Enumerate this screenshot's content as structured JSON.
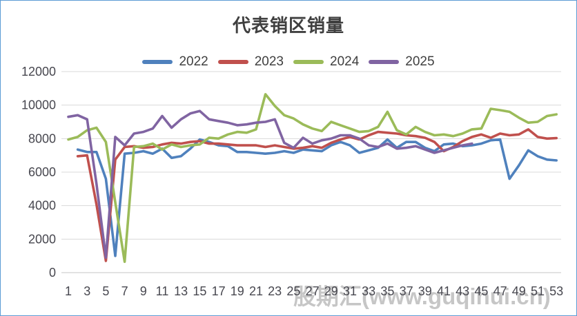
{
  "chart_data": {
    "type": "line",
    "title": "代表销区销量",
    "legend_position": "top",
    "grid": "horizontal",
    "axis": {
      "ylim": [
        0,
        12000
      ],
      "y_ticks": [
        0,
        2000,
        4000,
        6000,
        8000,
        10000,
        12000
      ],
      "x_ticks": [
        1,
        3,
        5,
        7,
        9,
        11,
        13,
        15,
        17,
        19,
        21,
        23,
        25,
        27,
        29,
        31,
        33,
        35,
        37,
        39,
        41,
        43,
        45,
        47,
        49,
        51,
        53
      ],
      "x_range": [
        1,
        53
      ]
    },
    "series": [
      {
        "name": "2022",
        "color": "#4F81BD",
        "start_week": 2,
        "values": [
          7350,
          7200,
          7200,
          5600,
          1000,
          7100,
          7150,
          7250,
          7100,
          7400,
          6850,
          6950,
          7400,
          7950,
          7800,
          7600,
          7550,
          7200,
          7200,
          7150,
          7100,
          7150,
          7250,
          7150,
          7350,
          7300,
          7250,
          7600,
          7800,
          7600,
          7150,
          7300,
          7450,
          7950,
          7450,
          7800,
          7800,
          7450,
          7250,
          7650,
          7700,
          7550,
          7600,
          7700,
          7900,
          7950,
          5600,
          6400,
          7300,
          6950,
          6750,
          6700
        ]
      },
      {
        "name": "2023",
        "color": "#C0504D",
        "start_week": 2,
        "values": [
          6950,
          7000,
          4070,
          700,
          6750,
          7500,
          7550,
          7450,
          7500,
          7650,
          7750,
          7700,
          7800,
          7850,
          7700,
          7700,
          7650,
          7600,
          7600,
          7600,
          7500,
          7600,
          7500,
          7400,
          7450,
          7550,
          7450,
          7750,
          7950,
          8100,
          7950,
          8200,
          8400,
          8350,
          8300,
          8200,
          8150,
          8050,
          7800,
          7250,
          7500,
          7850,
          8100,
          8250,
          8050,
          8300,
          8200,
          8250,
          8550,
          8100,
          8000,
          8030
        ]
      },
      {
        "name": "2024",
        "color": "#9BBB59",
        "start_week": 1,
        "values": [
          7950,
          8100,
          8500,
          8650,
          7800,
          4200,
          650,
          7500,
          7550,
          7700,
          7350,
          7650,
          7500,
          7600,
          7650,
          8050,
          8000,
          8250,
          8400,
          8350,
          8550,
          10650,
          9950,
          9400,
          9200,
          8850,
          8600,
          8450,
          9000,
          8800,
          8600,
          8400,
          8450,
          8700,
          9600,
          8500,
          8250,
          8700,
          8400,
          8200,
          8250,
          8150,
          8300,
          8550,
          8600,
          9780,
          9700,
          9600,
          9250,
          8950,
          9000,
          9350,
          9450
        ]
      },
      {
        "name": "2025",
        "color": "#8064A2",
        "start_week": 1,
        "values": [
          9300,
          9400,
          9150,
          5300,
          900,
          8100,
          7600,
          8300,
          8400,
          8600,
          9350,
          8650,
          9150,
          9500,
          9650,
          9150,
          9050,
          8950,
          8800,
          8850,
          8950,
          9000,
          9150,
          7750,
          7450,
          8050,
          7700,
          7900,
          8000,
          8200,
          8200,
          8000,
          7600,
          7500,
          7700,
          7400,
          7450,
          7550,
          7350,
          7150,
          7300,
          7450,
          7600,
          7700
        ]
      }
    ]
  },
  "watermark": {
    "text": "股期汇(www.guqihui.cn)"
  }
}
